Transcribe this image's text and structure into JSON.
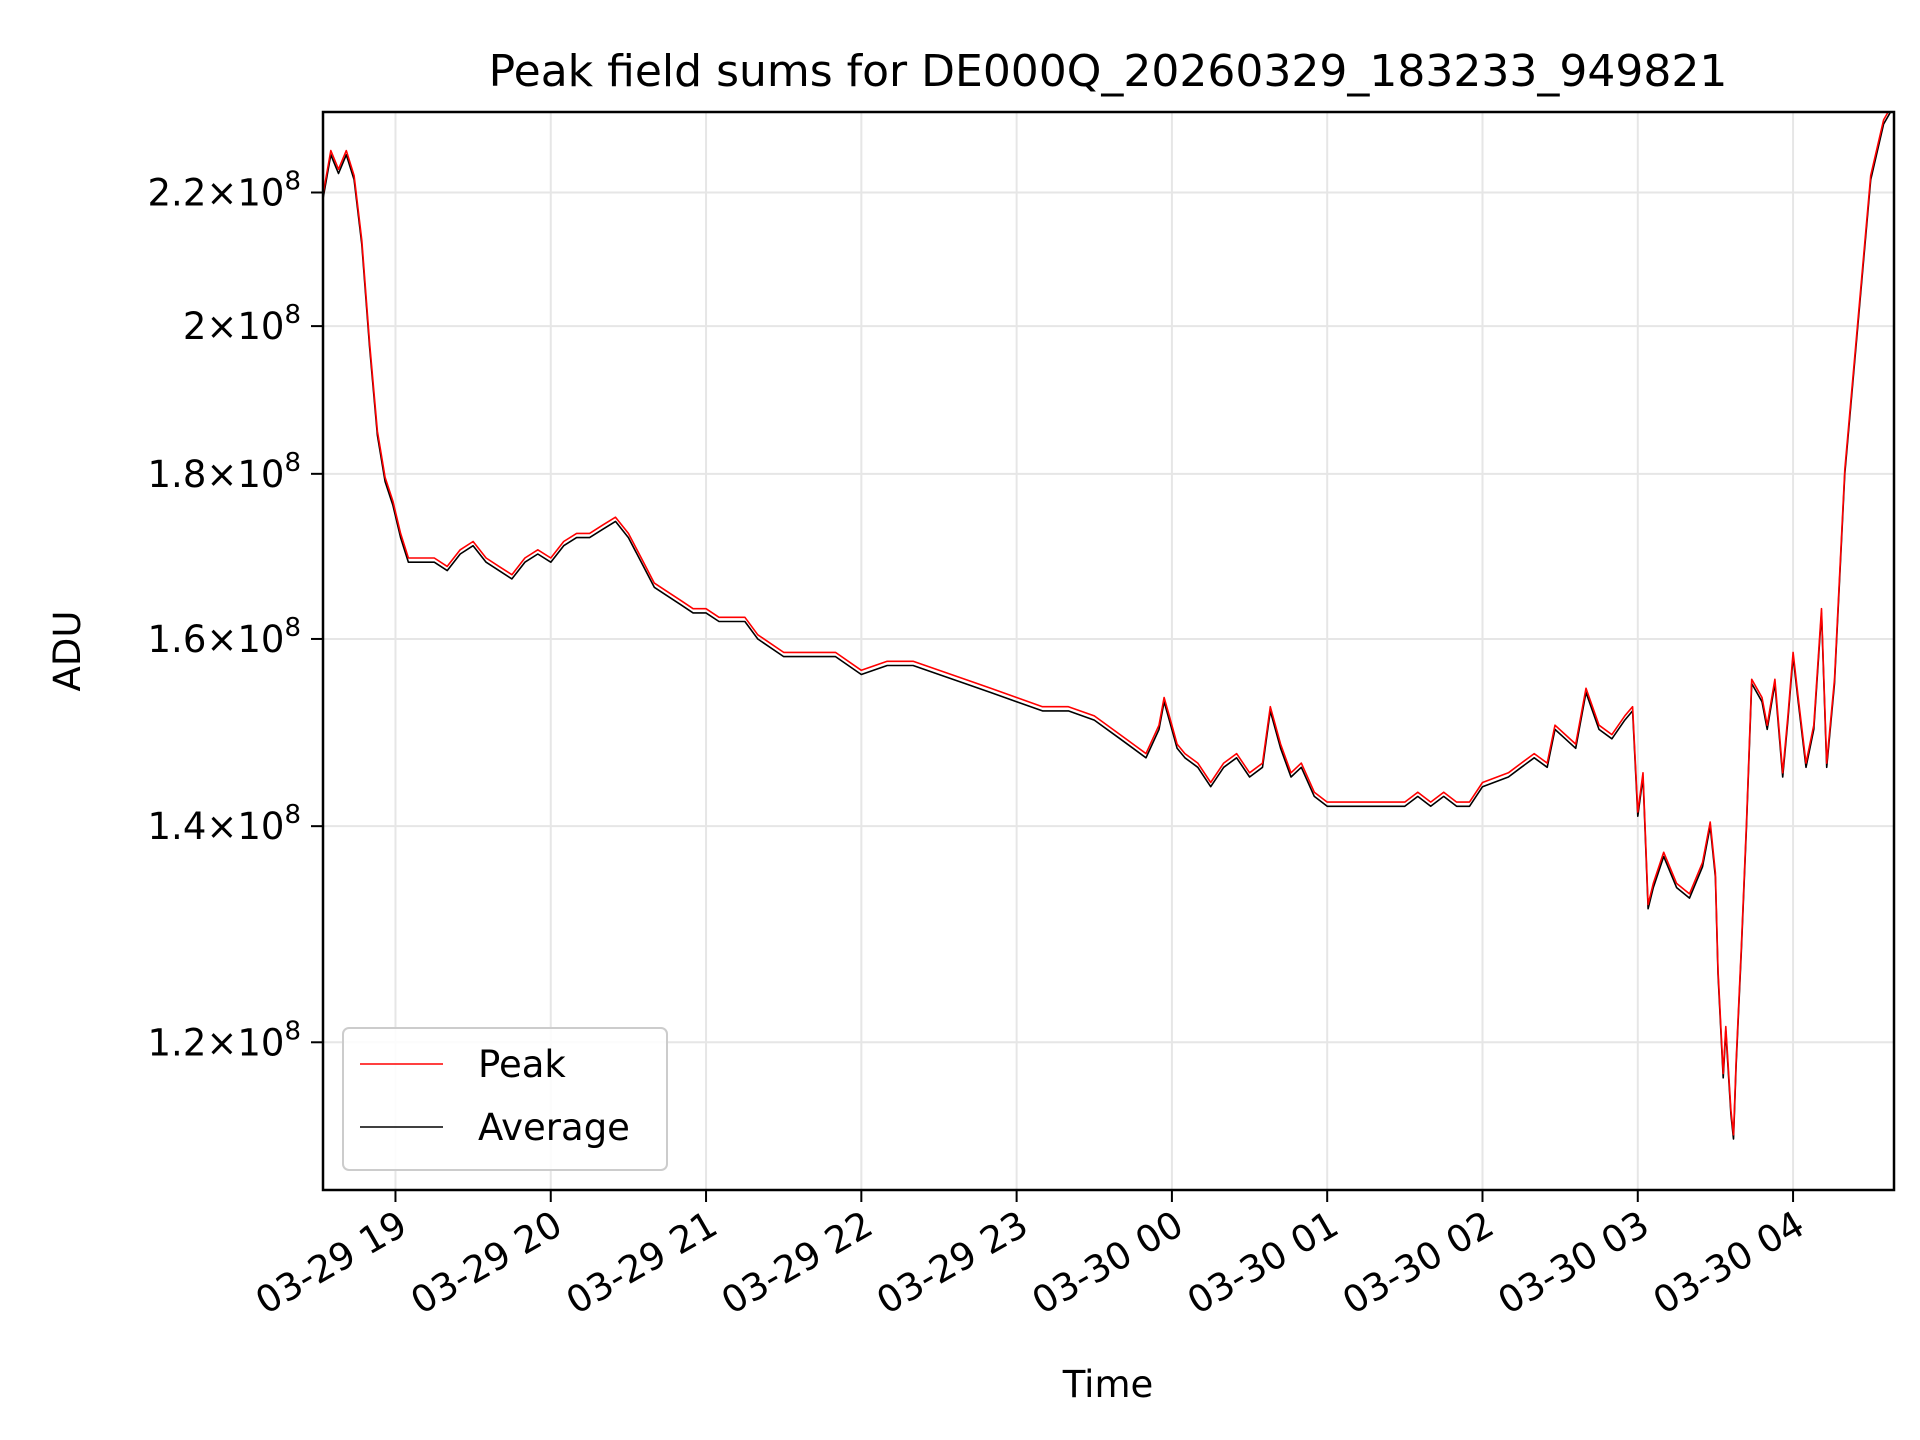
{
  "chart_data": {
    "type": "line",
    "title": "Peak field sums for DE000Q_20260329_183233_949821",
    "xlabel": "Time",
    "ylabel": "ADU",
    "yscale": "log",
    "grid": true,
    "legend_position": "lower-left",
    "xlim": [
      "03-29 18:32",
      "03-30 04:39"
    ],
    "ylim": [
      108000000,
      233000000
    ],
    "x_ticks": [
      "03-29 19",
      "03-29 20",
      "03-29 21",
      "03-29 22",
      "03-29 23",
      "03-30 00",
      "03-30 01",
      "03-30 02",
      "03-30 03",
      "03-30 04"
    ],
    "y_ticks": [
      {
        "value": 120000000,
        "mantissa": "1.2",
        "exp": "8"
      },
      {
        "value": 140000000,
        "mantissa": "1.4",
        "exp": "8"
      },
      {
        "value": 160000000,
        "mantissa": "1.6",
        "exp": "8"
      },
      {
        "value": 180000000,
        "mantissa": "1.8",
        "exp": "8"
      },
      {
        "value": 200000000,
        "mantissa": "2",
        "exp": "8"
      },
      {
        "value": 220000000,
        "mantissa": "2.2",
        "exp": "8"
      }
    ],
    "series": [
      {
        "name": "Peak",
        "color": "#ff0000",
        "offset_fraction": 0.003
      },
      {
        "name": "Average",
        "color": "#000000",
        "offset_fraction": 0.0
      }
    ],
    "x": [
      "03-29 18:32",
      "03-29 18:35",
      "03-29 18:38",
      "03-29 18:41",
      "03-29 18:44",
      "03-29 18:47",
      "03-29 18:50",
      "03-29 18:53",
      "03-29 18:56",
      "03-29 18:59",
      "03-29 19:02",
      "03-29 19:05",
      "03-29 19:10",
      "03-29 19:15",
      "03-29 19:20",
      "03-29 19:25",
      "03-29 19:30",
      "03-29 19:35",
      "03-29 19:40",
      "03-29 19:45",
      "03-29 19:50",
      "03-29 19:55",
      "03-29 20:00",
      "03-29 20:05",
      "03-29 20:10",
      "03-29 20:15",
      "03-29 20:20",
      "03-29 20:25",
      "03-29 20:30",
      "03-29 20:35",
      "03-29 20:40",
      "03-29 20:45",
      "03-29 20:50",
      "03-29 20:55",
      "03-29 21:00",
      "03-29 21:05",
      "03-29 21:10",
      "03-29 21:15",
      "03-29 21:20",
      "03-29 21:30",
      "03-29 21:40",
      "03-29 21:50",
      "03-29 22:00",
      "03-29 22:10",
      "03-29 22:20",
      "03-29 22:30",
      "03-29 22:40",
      "03-29 22:50",
      "03-29 23:00",
      "03-29 23:10",
      "03-29 23:20",
      "03-29 23:30",
      "03-29 23:40",
      "03-29 23:45",
      "03-29 23:50",
      "03-29 23:55",
      "03-29 23:57",
      "03-29 23:59",
      "03-30 00:02",
      "03-30 00:05",
      "03-30 00:10",
      "03-30 00:15",
      "03-30 00:20",
      "03-30 00:25",
      "03-30 00:30",
      "03-30 00:35",
      "03-30 00:38",
      "03-30 00:42",
      "03-30 00:46",
      "03-30 00:50",
      "03-30 00:55",
      "03-30 01:00",
      "03-30 01:10",
      "03-30 01:20",
      "03-30 01:30",
      "03-30 01:35",
      "03-30 01:40",
      "03-30 01:45",
      "03-30 01:50",
      "03-30 01:55",
      "03-30 02:00",
      "03-30 02:10",
      "03-30 02:15",
      "03-30 02:20",
      "03-30 02:25",
      "03-30 02:28",
      "03-30 02:32",
      "03-30 02:36",
      "03-30 02:40",
      "03-30 02:45",
      "03-30 02:50",
      "03-30 02:55",
      "03-30 02:58",
      "03-30 03:00",
      "03-30 03:02",
      "03-30 03:04",
      "03-30 03:06",
      "03-30 03:10",
      "03-30 03:15",
      "03-30 03:20",
      "03-30 03:25",
      "03-30 03:28",
      "03-30 03:30",
      "03-30 03:31",
      "03-30 03:33",
      "03-30 03:34",
      "03-30 03:36",
      "03-30 03:37",
      "03-30 03:38",
      "03-30 03:40",
      "03-30 03:42",
      "03-30 03:44",
      "03-30 03:46",
      "03-30 03:48",
      "03-30 03:50",
      "03-30 03:53",
      "03-30 03:56",
      "03-30 03:58",
      "03-30 04:00",
      "03-30 04:02",
      "03-30 04:05",
      "03-30 04:08",
      "03-30 04:11",
      "03-30 04:13",
      "03-30 04:16",
      "03-30 04:20",
      "03-30 04:25",
      "03-30 04:30",
      "03-30 04:35",
      "03-30 04:39"
    ],
    "y": [
      219000000,
      226000000,
      223000000,
      226000000,
      222000000,
      212000000,
      197000000,
      185000000,
      179000000,
      176000000,
      172000000,
      169000000,
      169000000,
      169000000,
      168000000,
      170000000,
      171000000,
      169000000,
      168000000,
      167000000,
      169000000,
      170000000,
      169000000,
      171000000,
      172000000,
      172000000,
      173000000,
      174000000,
      172000000,
      169000000,
      166000000,
      165000000,
      164000000,
      163000000,
      163000000,
      162000000,
      162000000,
      162000000,
      160000000,
      158000000,
      158000000,
      158000000,
      156000000,
      157000000,
      157000000,
      156000000,
      155000000,
      154000000,
      153000000,
      152000000,
      152000000,
      151000000,
      149000000,
      148000000,
      147000000,
      150000000,
      153000000,
      151000000,
      148000000,
      147000000,
      146000000,
      144000000,
      146000000,
      147000000,
      145000000,
      146000000,
      152000000,
      148000000,
      145000000,
      146000000,
      143000000,
      142000000,
      142000000,
      142000000,
      142000000,
      143000000,
      142000000,
      143000000,
      142000000,
      142000000,
      144000000,
      145000000,
      146000000,
      147000000,
      146000000,
      150000000,
      149000000,
      148000000,
      154000000,
      150000000,
      149000000,
      151000000,
      152000000,
      141000000,
      145000000,
      132000000,
      134000000,
      137000000,
      134000000,
      133000000,
      136000000,
      140000000,
      135000000,
      126000000,
      117000000,
      121000000,
      114000000,
      112000000,
      118000000,
      128000000,
      140000000,
      155000000,
      154000000,
      153000000,
      150000000,
      155000000,
      145000000,
      151000000,
      158000000,
      153000000,
      146000000,
      150000000,
      163000000,
      146000000,
      155000000,
      180000000,
      200000000,
      222000000,
      231000000,
      234000000
    ]
  }
}
